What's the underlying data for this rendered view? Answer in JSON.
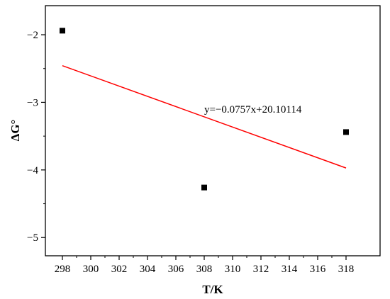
{
  "chart_data": {
    "type": "scatter",
    "title": "",
    "xlabel": "T/K",
    "ylabel": "ΔG°",
    "xlim": [
      296.8,
      320.4
    ],
    "ylim": [
      -5.27,
      -1.57
    ],
    "xticks": [
      298,
      300,
      302,
      304,
      306,
      308,
      310,
      312,
      314,
      316,
      318
    ],
    "yticks": [
      -5,
      -4,
      -3,
      -2
    ],
    "ytick_labels": [
      "−5",
      "−4",
      "−3",
      "−2"
    ],
    "grid": false,
    "points": [
      {
        "x": 298,
        "y": -1.94
      },
      {
        "x": 308,
        "y": -4.26
      },
      {
        "x": 318,
        "y": -3.44
      }
    ],
    "fit_line": {
      "equation": "y=−0.0757x+20.10114",
      "slope": -0.0757,
      "intercept": 20.10114,
      "x_range": [
        298,
        318
      ],
      "color": "#ff0000"
    },
    "marker_color": "#000000"
  }
}
